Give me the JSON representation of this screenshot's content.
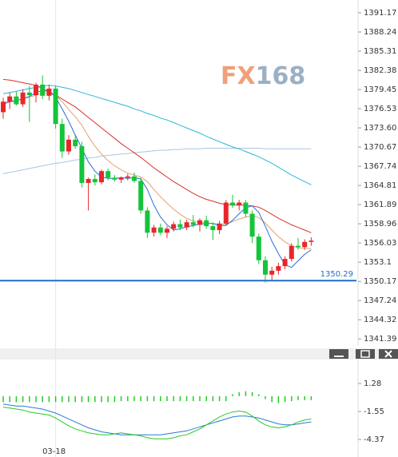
{
  "chart_data": [
    {
      "type": "candlestick",
      "watermark": [
        "FX",
        "168"
      ],
      "categories": [
        null,
        null,
        null,
        null,
        null,
        null,
        null,
        null,
        "03-18",
        null,
        null,
        null,
        null,
        null,
        null,
        null,
        null,
        null,
        null,
        null,
        null,
        null,
        null,
        null,
        null,
        null,
        null,
        null,
        null,
        null,
        null,
        null,
        null,
        null,
        null,
        null,
        null,
        null,
        null,
        null,
        null,
        null,
        null,
        null,
        null,
        null,
        null,
        null
      ],
      "open": [
        1376,
        1377.6,
        1378.4,
        1377.2,
        1379,
        1378.6,
        1380.2,
        1378.5,
        1379.6,
        1374.2,
        1370,
        1371.8,
        1370.8,
        1365.2,
        1365.8,
        1365.3,
        1367,
        1366,
        1365.7,
        1366,
        1366.2,
        1365.5,
        1361,
        1357.6,
        1358.4,
        1357.6,
        1358.2,
        1358.9,
        1358.4,
        1359.2,
        1358.8,
        1359.5,
        1358.6,
        1358,
        1359,
        1362.2,
        1361.8,
        1362.2,
        1360.5,
        1357,
        1353.4,
        1351.2,
        1351.8,
        1352.5,
        1353.6,
        1355.6,
        1355.4,
        1356.2
      ],
      "high": [
        1378.2,
        1379,
        1379.2,
        1379.5,
        1380,
        1380.5,
        1381.6,
        1380.2,
        1380,
        1375,
        1372.5,
        1372.6,
        1371.5,
        1366,
        1366.5,
        1367.2,
        1367.4,
        1366.4,
        1366.2,
        1366.6,
        1366.8,
        1366,
        1361.5,
        1358.8,
        1359,
        1358.6,
        1359.3,
        1359.6,
        1359.6,
        1360.3,
        1359.8,
        1360.2,
        1359.2,
        1359.4,
        1362.6,
        1363.4,
        1362.6,
        1362.6,
        1361,
        1357.5,
        1354,
        1352.4,
        1353,
        1354,
        1356,
        1356.8,
        1356.6,
        1356.9
      ],
      "low": [
        1375,
        1376.5,
        1377,
        1376.8,
        1374.5,
        1377.5,
        1378,
        1377.8,
        1373.5,
        1369,
        1369.5,
        1370.4,
        1364.5,
        1361,
        1364.8,
        1365,
        1365.6,
        1365.4,
        1365.2,
        1365.6,
        1365.2,
        1360.5,
        1356.8,
        1357,
        1357.2,
        1356.8,
        1357.8,
        1358,
        1358,
        1358.4,
        1357.8,
        1358.2,
        1356.5,
        1357.4,
        1358.8,
        1361.4,
        1361,
        1360,
        1356,
        1352.8,
        1350,
        1350.4,
        1351.2,
        1352,
        1353.2,
        1355,
        1355,
        1355.6
      ],
      "close": [
        1377.6,
        1378.4,
        1377.2,
        1379,
        1378.6,
        1380.2,
        1378.5,
        1379.6,
        1374.2,
        1370,
        1371.8,
        1370.8,
        1365.2,
        1365.8,
        1365.3,
        1367,
        1366,
        1365.7,
        1366,
        1366.2,
        1365.5,
        1361,
        1357.6,
        1358.4,
        1357.6,
        1358.2,
        1358.9,
        1358.4,
        1359.2,
        1358.8,
        1359.5,
        1358.6,
        1358,
        1359,
        1362.2,
        1361.8,
        1362.2,
        1360.5,
        1357,
        1353.4,
        1351.2,
        1351.8,
        1352.5,
        1353.6,
        1355.6,
        1355.4,
        1356.2,
        1356.4
      ],
      "up_color": "#e8262a",
      "down_color": "#14c43a",
      "series": [
        {
          "color": "#a9c6e2",
          "values": [
            1366.6,
            1366.8,
            1367,
            1367.2,
            1367.4,
            1367.6,
            1367.8,
            1368,
            1368.2,
            1368.3,
            1368.5,
            1368.7,
            1368.8,
            1369,
            1369.1,
            1369.3,
            1369.4,
            1369.5,
            1369.6,
            1369.7,
            1369.8,
            1369.9,
            1370,
            1370.1,
            1370.2,
            1370.2,
            1370.3,
            1370.3,
            1370.4,
            1370.4,
            1370.4,
            1370.5,
            1370.5,
            1370.5,
            1370.5,
            1370.5,
            1370.5,
            1370.5,
            1370.5,
            1370.5,
            1370.4,
            1370.4,
            1370.4,
            1370.4,
            1370.4,
            1370.4,
            1370.4,
            1370.4
          ]
        },
        {
          "color": "#2bb7d9",
          "values": [
            1378.8,
            1379,
            1379.2,
            1379.4,
            1379.6,
            1379.8,
            1380,
            1380.1,
            1380,
            1379.8,
            1379.6,
            1379.3,
            1379,
            1378.7,
            1378.4,
            1378.1,
            1377.8,
            1377.5,
            1377.2,
            1376.9,
            1376.5,
            1376.2,
            1375.8,
            1375.5,
            1375.1,
            1374.8,
            1374.4,
            1374,
            1373.6,
            1373.2,
            1372.8,
            1372.3,
            1371.9,
            1371.5,
            1371.1,
            1370.7,
            1370.4,
            1370,
            1369.6,
            1369.2,
            1368.7,
            1368.2,
            1367.6,
            1367,
            1366.4,
            1365.9,
            1365.4,
            1364.9
          ]
        },
        {
          "color": "#d9302a",
          "values": [
            1381,
            1380.9,
            1380.7,
            1380.5,
            1380.3,
            1380.1,
            1379.6,
            1379.1,
            1378.6,
            1378,
            1377.4,
            1376.8,
            1376,
            1375.2,
            1374.4,
            1373.6,
            1372.8,
            1372,
            1371.2,
            1370.5,
            1369.8,
            1369.1,
            1368.3,
            1367.5,
            1366.8,
            1366.1,
            1365.4,
            1364.8,
            1364.2,
            1363.6,
            1363.1,
            1362.7,
            1362.4,
            1362.1,
            1361.9,
            1361.8,
            1361.8,
            1361.8,
            1361.7,
            1361.5,
            1361,
            1360.4,
            1359.8,
            1359.3,
            1358.8,
            1358.4,
            1358,
            1357.6
          ]
        },
        {
          "color": "#e3a273",
          "values": [
            1377.5,
            1377.7,
            1377.8,
            1378,
            1378.3,
            1378.6,
            1378.9,
            1379,
            1378.6,
            1377.6,
            1376.4,
            1375.3,
            1374,
            1372.3,
            1370.8,
            1369.6,
            1368.6,
            1367.8,
            1367.2,
            1366.7,
            1366.4,
            1366.1,
            1365.4,
            1364.2,
            1363.1,
            1362.1,
            1361.2,
            1360.4,
            1359.8,
            1359.4,
            1359.2,
            1359.1,
            1359,
            1358.9,
            1358.9,
            1359.3,
            1359.7,
            1360,
            1360.2,
            1359.9,
            1359.1,
            1358,
            1357,
            1356.2,
            1355.6,
            1355.3,
            1355.2,
            1355.2
          ]
        },
        {
          "color": "#2a6fd6",
          "values": [
            1377.2,
            1377.6,
            1377.7,
            1378.1,
            1378.4,
            1379,
            1379.3,
            1379.2,
            1378.3,
            1376.5,
            1374.6,
            1372.5,
            1370.5,
            1368.4,
            1367,
            1366.1,
            1365.9,
            1365.9,
            1366,
            1365.9,
            1366,
            1365.8,
            1364.2,
            1361.8,
            1360,
            1358.8,
            1358,
            1358.2,
            1358.5,
            1358.7,
            1358.9,
            1359,
            1359,
            1358.7,
            1358.7,
            1359.5,
            1360.5,
            1361.4,
            1361.7,
            1360.7,
            1358.6,
            1356.3,
            1354.4,
            1352.7,
            1352.3,
            1353.3,
            1354.3,
            1355
          ]
        }
      ],
      "hline": 1350.29,
      "hline_color": "#1f6fc8",
      "ylim": [
        1340.44,
        1393.12
      ],
      "yticks": [
        1391.17,
        1388.24,
        1385.31,
        1382.38,
        1379.45,
        1376.53,
        {
          "value": 1373.6,
          "label": "1373.60"
        },
        1370.67,
        1367.74,
        1364.81,
        1361.89,
        1358.96,
        1356.03,
        1353.1,
        1350.17,
        1347.24,
        1344.32,
        1341.39
      ]
    },
    {
      "type": "macd",
      "ylim": [
        -6.14,
        3.7
      ],
      "yticks": [
        1.28,
        -1.55,
        -4.37
      ],
      "histogram_color": "#22cc22",
      "histogram": [
        -0.6,
        -0.6,
        -0.6,
        -0.6,
        -0.6,
        -0.6,
        -0.6,
        -0.6,
        -0.6,
        -0.6,
        -0.6,
        -0.6,
        -0.6,
        -0.6,
        -0.6,
        -0.6,
        -0.6,
        -0.6,
        -0.5,
        -0.5,
        -0.5,
        -0.5,
        -0.5,
        -0.5,
        -0.5,
        -0.5,
        -0.5,
        -0.5,
        -0.5,
        -0.5,
        -0.5,
        -0.5,
        -0.5,
        -0.5,
        -0.5,
        0.2,
        0.4,
        0.5,
        0.4,
        0.2,
        -0.3,
        -0.6,
        -0.7,
        -0.6,
        -0.5,
        -0.4,
        -0.4,
        -0.4
      ],
      "series": [
        {
          "color": "#2a78d6",
          "values": [
            -0.8,
            -0.9,
            -1,
            -1,
            -1.1,
            -1.2,
            -1.3,
            -1.5,
            -1.7,
            -2,
            -2.3,
            -2.6,
            -2.9,
            -3.2,
            -3.4,
            -3.6,
            -3.7,
            -3.8,
            -3.9,
            -3.9,
            -3.9,
            -3.9,
            -3.9,
            -3.9,
            -3.9,
            -3.8,
            -3.7,
            -3.6,
            -3.5,
            -3.3,
            -3.1,
            -2.9,
            -2.7,
            -2.5,
            -2.3,
            -2.1,
            -2,
            -2,
            -2.1,
            -2.2,
            -2.4,
            -2.6,
            -2.8,
            -2.9,
            -2.9,
            -2.8,
            -2.7,
            -2.6
          ]
        },
        {
          "color": "#22cc22",
          "values": [
            -1.1,
            -1.2,
            -1.3,
            -1.4,
            -1.6,
            -1.7,
            -1.8,
            -1.9,
            -2.2,
            -2.6,
            -3,
            -3.3,
            -3.5,
            -3.7,
            -3.8,
            -3.9,
            -3.9,
            -3.8,
            -3.7,
            -3.8,
            -3.9,
            -4,
            -4.2,
            -4.3,
            -4.3,
            -4.3,
            -4.2,
            -4,
            -3.9,
            -3.6,
            -3.3,
            -2.9,
            -2.5,
            -2.1,
            -1.8,
            -1.6,
            -1.5,
            -1.6,
            -2,
            -2.5,
            -2.9,
            -3.1,
            -3.2,
            -3.1,
            -2.9,
            -2.6,
            -2.4,
            -2.3
          ]
        }
      ]
    }
  ]
}
